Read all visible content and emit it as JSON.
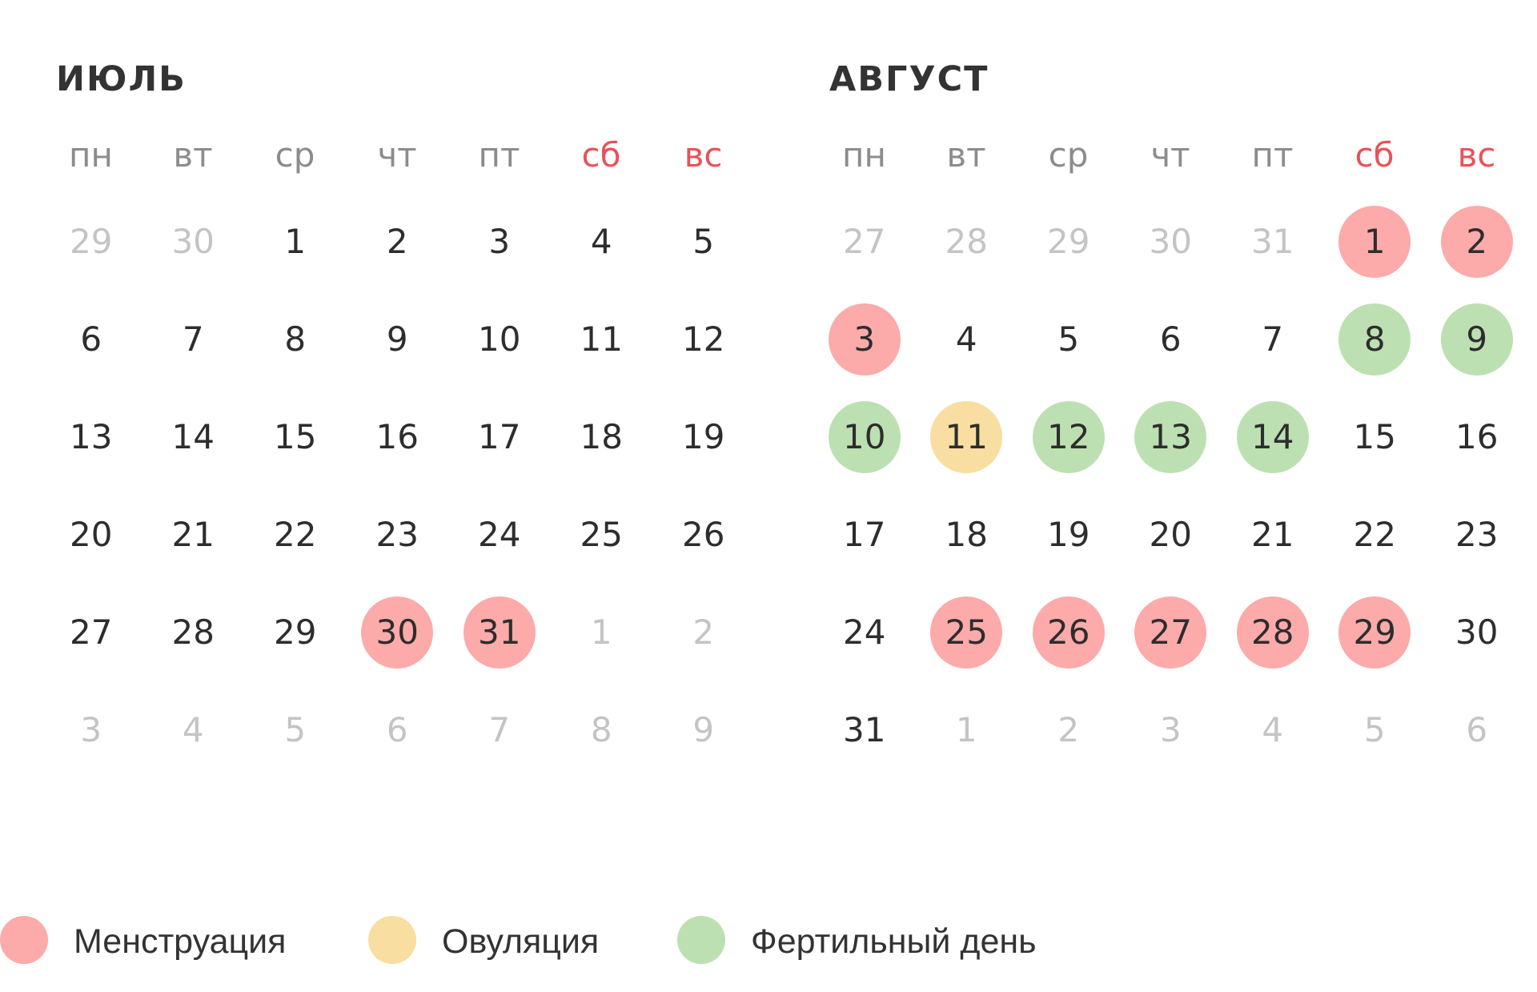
{
  "colors": {
    "menstruation": "#fcaaaa",
    "ovulation": "#f8dea0",
    "fertile": "#bde0b2",
    "weekend_label": "#e8525a",
    "text": "#2d2d2d",
    "muted": "#c4c4c4",
    "weekday": "#8c8c8c"
  },
  "weekdays": [
    "пн",
    "вт",
    "ср",
    "чт",
    "пт",
    "сб",
    "вс"
  ],
  "months": [
    {
      "title": "ИЮЛЬ",
      "weeks": [
        [
          {
            "d": "29",
            "muted": true
          },
          {
            "d": "30",
            "muted": true
          },
          {
            "d": "1"
          },
          {
            "d": "2"
          },
          {
            "d": "3"
          },
          {
            "d": "4"
          },
          {
            "d": "5"
          }
        ],
        [
          {
            "d": "6"
          },
          {
            "d": "7"
          },
          {
            "d": "8"
          },
          {
            "d": "9"
          },
          {
            "d": "10"
          },
          {
            "d": "11"
          },
          {
            "d": "12"
          }
        ],
        [
          {
            "d": "13"
          },
          {
            "d": "14"
          },
          {
            "d": "15"
          },
          {
            "d": "16"
          },
          {
            "d": "17"
          },
          {
            "d": "18"
          },
          {
            "d": "19"
          }
        ],
        [
          {
            "d": "20"
          },
          {
            "d": "21"
          },
          {
            "d": "22"
          },
          {
            "d": "23"
          },
          {
            "d": "24"
          },
          {
            "d": "25"
          },
          {
            "d": "26"
          }
        ],
        [
          {
            "d": "27"
          },
          {
            "d": "28"
          },
          {
            "d": "29"
          },
          {
            "d": "30",
            "mark": "menstruation"
          },
          {
            "d": "31",
            "mark": "menstruation"
          },
          {
            "d": "1",
            "muted": true
          },
          {
            "d": "2",
            "muted": true
          }
        ],
        [
          {
            "d": "3",
            "muted": true
          },
          {
            "d": "4",
            "muted": true
          },
          {
            "d": "5",
            "muted": true
          },
          {
            "d": "6",
            "muted": true
          },
          {
            "d": "7",
            "muted": true
          },
          {
            "d": "8",
            "muted": true
          },
          {
            "d": "9",
            "muted": true
          }
        ]
      ]
    },
    {
      "title": "АВГУСТ",
      "weeks": [
        [
          {
            "d": "27",
            "muted": true
          },
          {
            "d": "28",
            "muted": true
          },
          {
            "d": "29",
            "muted": true
          },
          {
            "d": "30",
            "muted": true
          },
          {
            "d": "31",
            "muted": true
          },
          {
            "d": "1",
            "mark": "menstruation"
          },
          {
            "d": "2",
            "mark": "menstruation"
          }
        ],
        [
          {
            "d": "3",
            "mark": "menstruation"
          },
          {
            "d": "4"
          },
          {
            "d": "5"
          },
          {
            "d": "6"
          },
          {
            "d": "7"
          },
          {
            "d": "8",
            "mark": "fertile"
          },
          {
            "d": "9",
            "mark": "fertile"
          }
        ],
        [
          {
            "d": "10",
            "mark": "fertile"
          },
          {
            "d": "11",
            "mark": "ovulation"
          },
          {
            "d": "12",
            "mark": "fertile"
          },
          {
            "d": "13",
            "mark": "fertile"
          },
          {
            "d": "14",
            "mark": "fertile"
          },
          {
            "d": "15"
          },
          {
            "d": "16"
          }
        ],
        [
          {
            "d": "17"
          },
          {
            "d": "18"
          },
          {
            "d": "19"
          },
          {
            "d": "20"
          },
          {
            "d": "21"
          },
          {
            "d": "22"
          },
          {
            "d": "23"
          }
        ],
        [
          {
            "d": "24"
          },
          {
            "d": "25",
            "mark": "menstruation"
          },
          {
            "d": "26",
            "mark": "menstruation"
          },
          {
            "d": "27",
            "mark": "menstruation"
          },
          {
            "d": "28",
            "mark": "menstruation"
          },
          {
            "d": "29",
            "mark": "menstruation"
          },
          {
            "d": "30"
          }
        ],
        [
          {
            "d": "31"
          },
          {
            "d": "1",
            "muted": true
          },
          {
            "d": "2",
            "muted": true
          },
          {
            "d": "3",
            "muted": true
          },
          {
            "d": "4",
            "muted": true
          },
          {
            "d": "5",
            "muted": true
          },
          {
            "d": "6",
            "muted": true
          }
        ]
      ]
    }
  ],
  "legend": [
    {
      "key": "menstruation",
      "label": "Менструация"
    },
    {
      "key": "ovulation",
      "label": "Овуляция"
    },
    {
      "key": "fertile",
      "label": "Фертильный день"
    }
  ]
}
